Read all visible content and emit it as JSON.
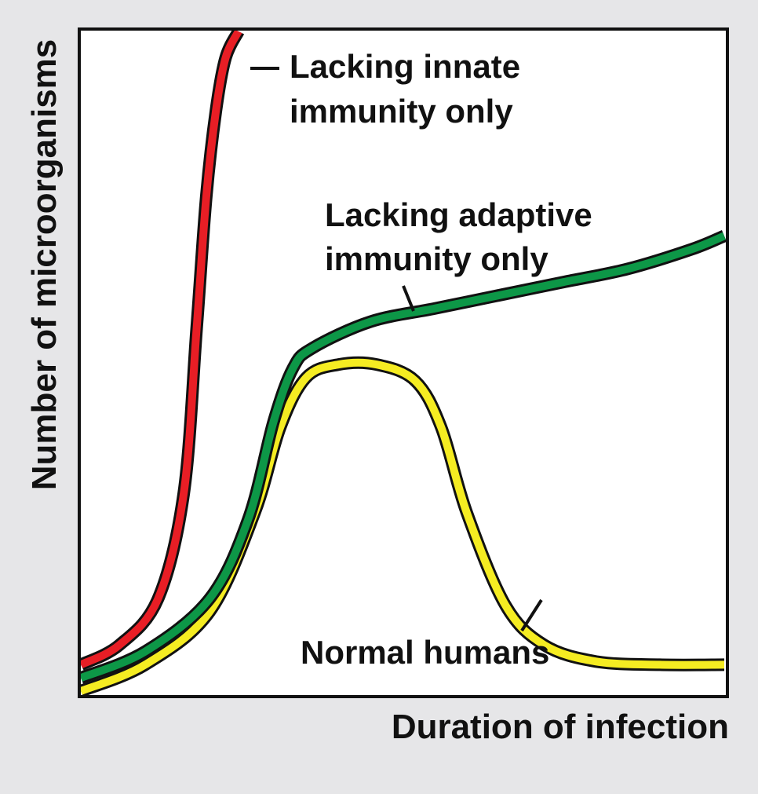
{
  "chart_data": {
    "type": "line",
    "title": "",
    "xlabel": "Duration of infection",
    "ylabel": "Number of microorganisms",
    "xlim": [
      0,
      100
    ],
    "ylim": [
      0,
      100
    ],
    "grid": false,
    "legend": "none",
    "series": [
      {
        "name": "Lacking innate immunity only",
        "label_lines": [
          "Lacking innate",
          "immunity only"
        ],
        "color": "#e81e25",
        "x": [
          0,
          6,
          12,
          16,
          18,
          19.5,
          21,
          22.5,
          24.5
        ],
        "y": [
          4,
          7,
          14,
          30,
          55,
          75,
          88,
          96,
          100
        ]
      },
      {
        "name": "Lacking adaptive immunity only",
        "label_lines": [
          "Lacking adaptive",
          "immunity only"
        ],
        "color": "#0d9747",
        "x": [
          0,
          10,
          20,
          26,
          30,
          33,
          36,
          45,
          55,
          65,
          75,
          85,
          95,
          100
        ],
        "y": [
          2,
          6,
          14,
          26,
          41,
          49,
          52,
          56,
          58,
          60,
          62,
          64,
          67,
          69
        ]
      },
      {
        "name": "Normal humans",
        "label_lines": [
          "Normal humans"
        ],
        "color": "#f5ec22",
        "x": [
          0,
          10,
          20,
          27,
          31,
          35,
          40,
          46,
          52,
          56,
          60,
          66,
          72,
          80,
          90,
          100
        ],
        "y": [
          0,
          4,
          12,
          27,
          40,
          47.5,
          49.5,
          49.5,
          47,
          40,
          27,
          13,
          7,
          4.5,
          4,
          4
        ]
      }
    ]
  }
}
